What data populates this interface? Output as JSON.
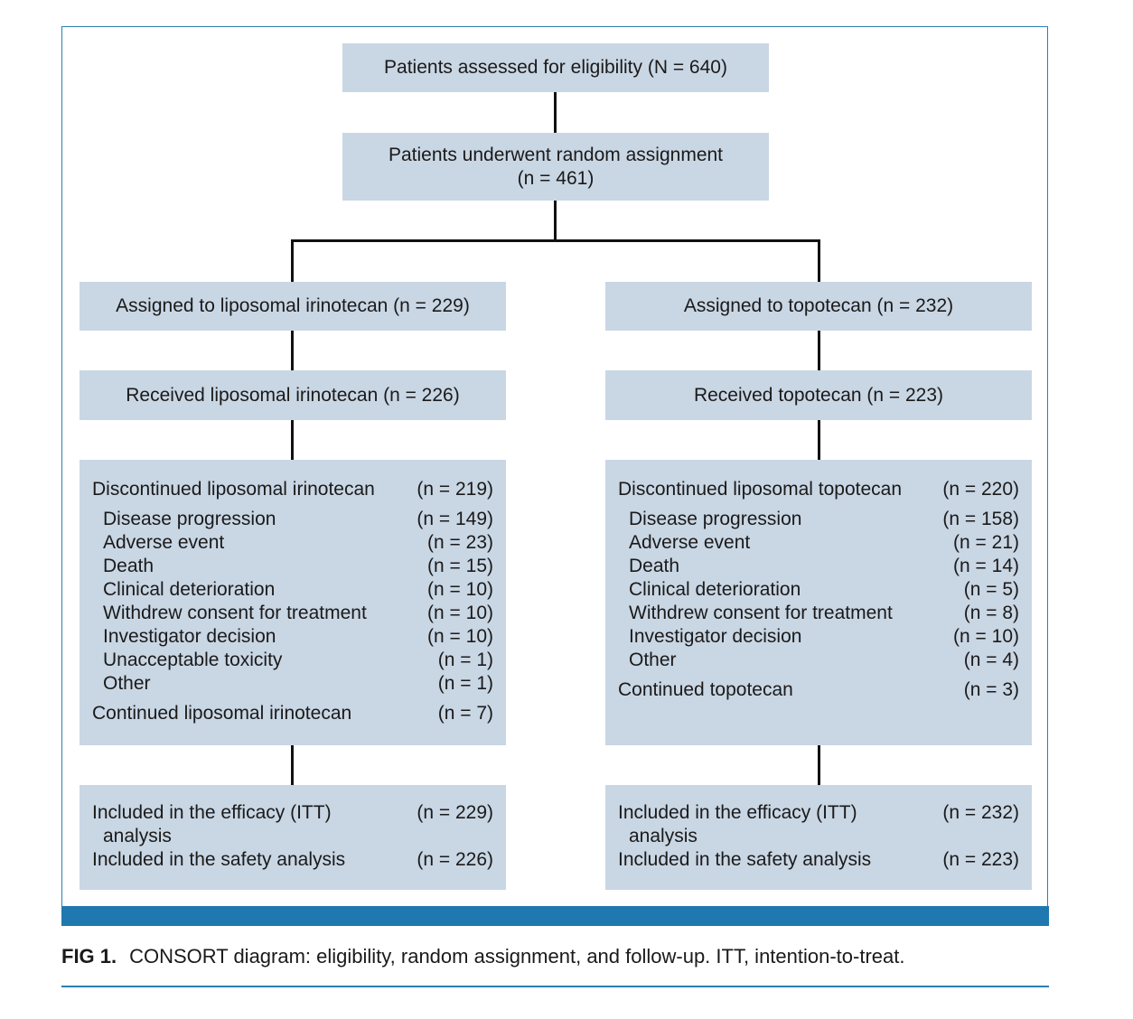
{
  "top": {
    "assessed": "Patients assessed for eligibility (N = 640)",
    "randomized_line1": "Patients underwent random assignment",
    "randomized_line2": "(n = 461)"
  },
  "left": {
    "assigned": "Assigned to liposomal irinotecan (n = 229)",
    "received": "Received liposomal irinotecan (n = 226)",
    "discontinued_label": "Discontinued liposomal irinotecan",
    "discontinued_value": "(n = 219)",
    "reasons": [
      {
        "label": "Disease progression",
        "value": "(n = 149)"
      },
      {
        "label": "Adverse event",
        "value": "(n = 23)"
      },
      {
        "label": "Death",
        "value": "(n = 15)"
      },
      {
        "label": "Clinical deterioration",
        "value": "(n = 10)"
      },
      {
        "label": "Withdrew consent for treatment",
        "value": "(n = 10)"
      },
      {
        "label": "Investigator decision",
        "value": "(n = 10)"
      },
      {
        "label": "Unacceptable toxicity",
        "value": "(n = 1)"
      },
      {
        "label": "Other",
        "value": "(n = 1)"
      }
    ],
    "continued_label": "Continued liposomal irinotecan",
    "continued_value": "(n = 7)",
    "efficacy_label_1": "Included in the efficacy (ITT)",
    "efficacy_label_2": "analysis",
    "efficacy_value": "(n = 229)",
    "safety_label": "Included in the safety analysis",
    "safety_value": "(n = 226)"
  },
  "right": {
    "assigned": "Assigned to topotecan (n = 232)",
    "received": "Received topotecan (n = 223)",
    "discontinued_label": "Discontinued liposomal topotecan",
    "discontinued_value": "(n = 220)",
    "reasons": [
      {
        "label": "Disease progression",
        "value": "(n = 158)"
      },
      {
        "label": "Adverse event",
        "value": "(n = 21)"
      },
      {
        "label": "Death",
        "value": "(n = 14)"
      },
      {
        "label": "Clinical deterioration",
        "value": "(n = 5)"
      },
      {
        "label": "Withdrew consent for treatment",
        "value": "(n = 8)"
      },
      {
        "label": "Investigator decision",
        "value": "(n = 10)"
      },
      {
        "label": "Other",
        "value": "(n = 4)"
      }
    ],
    "continued_label": "Continued topotecan",
    "continued_value": "(n = 3)",
    "efficacy_label_1": "Included in the efficacy (ITT)",
    "efficacy_label_2": "analysis",
    "efficacy_value": "(n = 232)",
    "safety_label": "Included in the safety analysis",
    "safety_value": "(n = 223)"
  },
  "caption": {
    "fig_label": "FIG 1.",
    "text": "CONSORT diagram: eligibility, random assignment, and follow-up. ITT, intention-to-treat."
  },
  "colors": {
    "box_fill": "#c9d6e4",
    "frame": "#2a7fb5",
    "bar": "#1f78b0",
    "connector": "#111111"
  }
}
